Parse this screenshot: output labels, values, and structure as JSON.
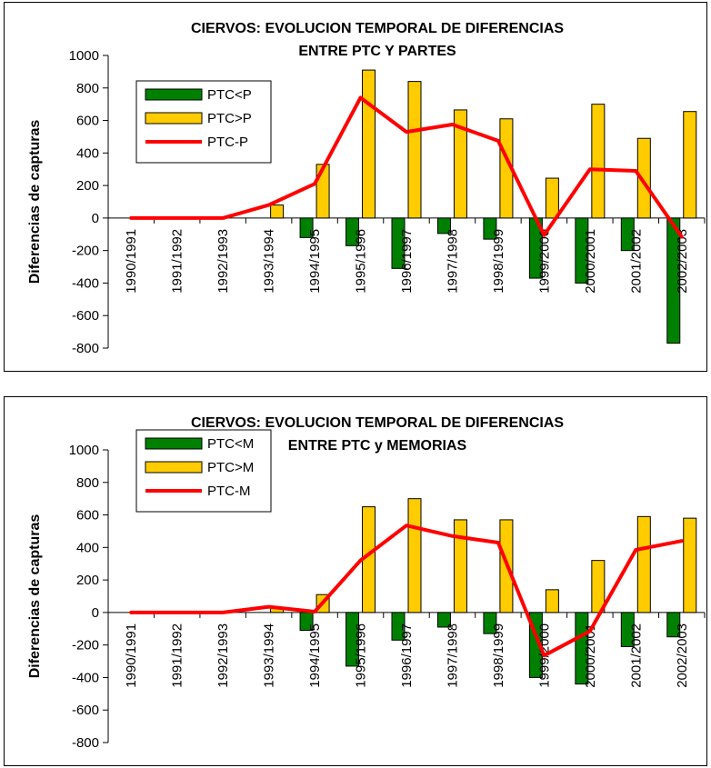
{
  "chart_data": [
    {
      "type": "bar",
      "title_lines": [
        "CIERVOS: EVOLUCION TEMPORAL DE DIFERENCIAS",
        "ENTRE PTC Y PARTES"
      ],
      "ylabel": "Diferencias de capturas",
      "ylim": [
        -800,
        1000
      ],
      "yticks": [
        -800,
        -600,
        -400,
        -200,
        0,
        200,
        400,
        600,
        800,
        1000
      ],
      "categories": [
        "1990/1991",
        "1991/1992",
        "1992/1993",
        "1993/1994",
        "1994/1995",
        "1995/1996",
        "1996/1997",
        "1997/1998",
        "1998/1999",
        "1999/2000",
        "2000/2001",
        "2001/2002",
        "2002/2003"
      ],
      "series": [
        {
          "name": "PTC<P",
          "kind": "bar",
          "color": "#008000",
          "values": [
            0,
            0,
            0,
            0,
            -120,
            -170,
            -310,
            -95,
            -130,
            -370,
            -400,
            -200,
            -770
          ]
        },
        {
          "name": "PTC>P",
          "kind": "bar",
          "color": "#FFCC00",
          "values": [
            0,
            0,
            0,
            80,
            330,
            910,
            840,
            665,
            610,
            245,
            700,
            490,
            655
          ]
        },
        {
          "name": "PTC-P",
          "kind": "line",
          "color": "#FF0000",
          "values": [
            0,
            0,
            0,
            80,
            210,
            740,
            530,
            575,
            475,
            -105,
            300,
            290,
            -115
          ]
        }
      ],
      "legend": "top-left"
    },
    {
      "type": "bar",
      "title_lines": [
        "CIERVOS: EVOLUCION TEMPORAL DE DIFERENCIAS",
        "ENTRE PTC y MEMORIAS"
      ],
      "ylabel": "Diferencias de capturas",
      "ylim": [
        -800,
        1000
      ],
      "yticks": [
        -800,
        -600,
        -400,
        -200,
        0,
        200,
        400,
        600,
        800,
        1000
      ],
      "categories": [
        "1990/1991",
        "1991/1992",
        "1992/1993",
        "1993/1994",
        "1994/1995",
        "1995/1996",
        "1996/1997",
        "1997/1998",
        "1998/1999",
        "1999/2000",
        "2000/2001",
        "2001/2002",
        "2002/2003"
      ],
      "series": [
        {
          "name": "PTC<M",
          "kind": "bar",
          "color": "#008000",
          "values": [
            0,
            0,
            0,
            0,
            -110,
            -330,
            -170,
            -90,
            -130,
            -400,
            -440,
            -210,
            -150
          ]
        },
        {
          "name": "PTC>M",
          "kind": "bar",
          "color": "#FFCC00",
          "values": [
            0,
            0,
            0,
            30,
            110,
            650,
            700,
            570,
            570,
            140,
            320,
            590,
            580
          ]
        },
        {
          "name": "PTC-M",
          "kind": "line",
          "color": "#FF0000",
          "values": [
            0,
            0,
            0,
            35,
            5,
            320,
            535,
            470,
            430,
            -265,
            -115,
            385,
            440
          ]
        }
      ],
      "legend": "top-left"
    }
  ]
}
